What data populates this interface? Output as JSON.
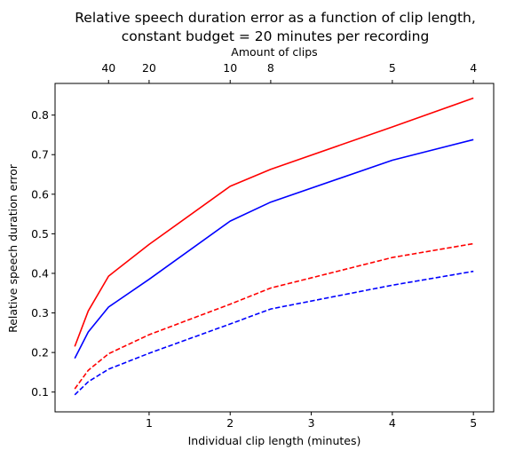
{
  "chart_data": {
    "type": "line",
    "title_line1": "Relative speech duration error as a function of clip length,",
    "title_line2": "constant budget = 20 minutes per recording",
    "xlabel": "Individual clip length (minutes)",
    "ylabel": "Relative speech duration error",
    "top_xlabel": "Amount of clips",
    "xlim": [
      -0.16,
      5.25
    ],
    "ylim": [
      0.05,
      0.88
    ],
    "x_ticks": [
      1,
      2,
      3,
      4,
      5
    ],
    "y_ticks": [
      0.1,
      0.2,
      0.3,
      0.4,
      0.5,
      0.6,
      0.7,
      0.8
    ],
    "top_ticks": [
      {
        "label": "40",
        "x": 0.5
      },
      {
        "label": "20",
        "x": 1
      },
      {
        "label": "10",
        "x": 2
      },
      {
        "label": "8",
        "x": 2.5
      },
      {
        "label": "5",
        "x": 4
      },
      {
        "label": "4",
        "x": 5
      }
    ],
    "grid": false,
    "series": [
      {
        "color": "#ff0000",
        "dash": "solid",
        "x": [
          0.083,
          0.25,
          0.5,
          1,
          2,
          2.5,
          4,
          5
        ],
        "y": [
          0.215,
          0.305,
          0.393,
          0.473,
          0.62,
          0.663,
          0.77,
          0.843
        ]
      },
      {
        "color": "#0000ff",
        "dash": "solid",
        "x": [
          0.083,
          0.25,
          0.5,
          1,
          2,
          2.5,
          4,
          5
        ],
        "y": [
          0.185,
          0.252,
          0.315,
          0.385,
          0.532,
          0.58,
          0.686,
          0.738
        ]
      },
      {
        "color": "#ff0000",
        "dash": "dashed",
        "x": [
          0.083,
          0.25,
          0.5,
          1,
          2,
          2.5,
          4,
          5
        ],
        "y": [
          0.108,
          0.155,
          0.197,
          0.245,
          0.322,
          0.363,
          0.44,
          0.475
        ]
      },
      {
        "color": "#0000ff",
        "dash": "dashed",
        "x": [
          0.083,
          0.25,
          0.5,
          1,
          2,
          2.5,
          4,
          5
        ],
        "y": [
          0.093,
          0.126,
          0.158,
          0.198,
          0.272,
          0.31,
          0.37,
          0.405
        ]
      }
    ]
  }
}
